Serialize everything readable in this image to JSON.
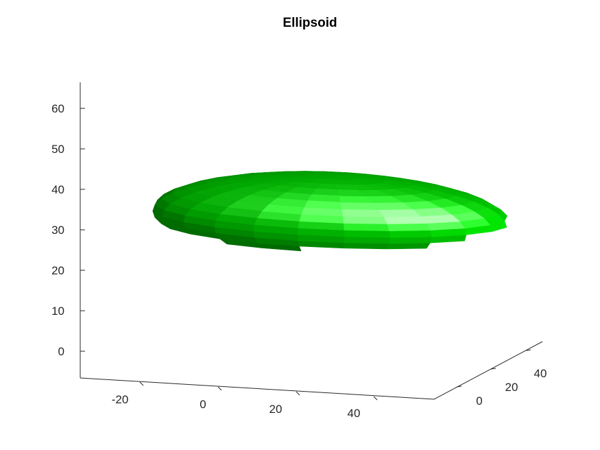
{
  "chart_data": {
    "type": "surface3d",
    "title": "Ellipsoid",
    "shape": "ellipsoid",
    "center": [
      20,
      20,
      30
    ],
    "radii": [
      45,
      20,
      10
    ],
    "facet_color": "#00ff00",
    "xlim": [
      -30,
      55
    ],
    "ylim": [
      -20,
      55
    ],
    "zlim": [
      -5,
      65
    ],
    "x_ticks": [
      "-20",
      "0",
      "20",
      "40"
    ],
    "y_ticks": [
      "0",
      "20",
      "40"
    ],
    "z_ticks": [
      "0",
      "10",
      "20",
      "30",
      "40",
      "50",
      "60"
    ],
    "grid": false
  }
}
